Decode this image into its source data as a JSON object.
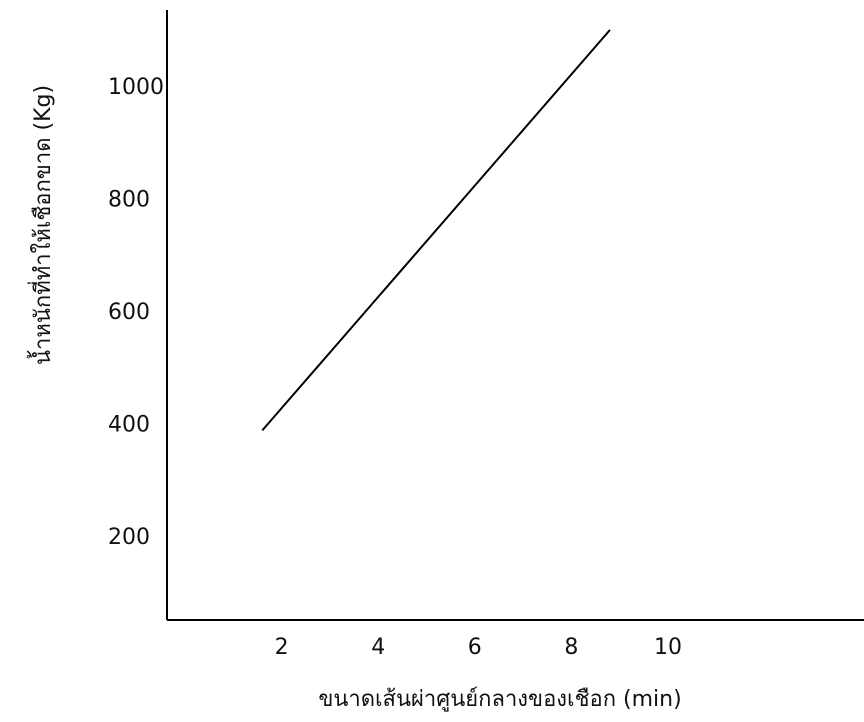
{
  "chart_data": {
    "type": "line",
    "title": "",
    "xlabel": "ขนาดเส้นผ่าศูนย์กลางของเชือก (min)",
    "ylabel": "น้ำหนักที่ทำให้เชือกขาด (Kg)",
    "x_ticks": [
      2,
      4,
      6,
      8,
      10
    ],
    "y_ticks": [
      200,
      400,
      600,
      800,
      1000
    ],
    "xlim": [
      0,
      14.5
    ],
    "ylim": [
      60,
      1100
    ],
    "grid": false,
    "legend": "none",
    "colors": {
      "line": "#000000",
      "axes": "#000000",
      "text": "#111111"
    },
    "series": [
      {
        "x": [
          1.6,
          8.8
        ],
        "y": [
          388,
          1100
        ]
      }
    ]
  }
}
